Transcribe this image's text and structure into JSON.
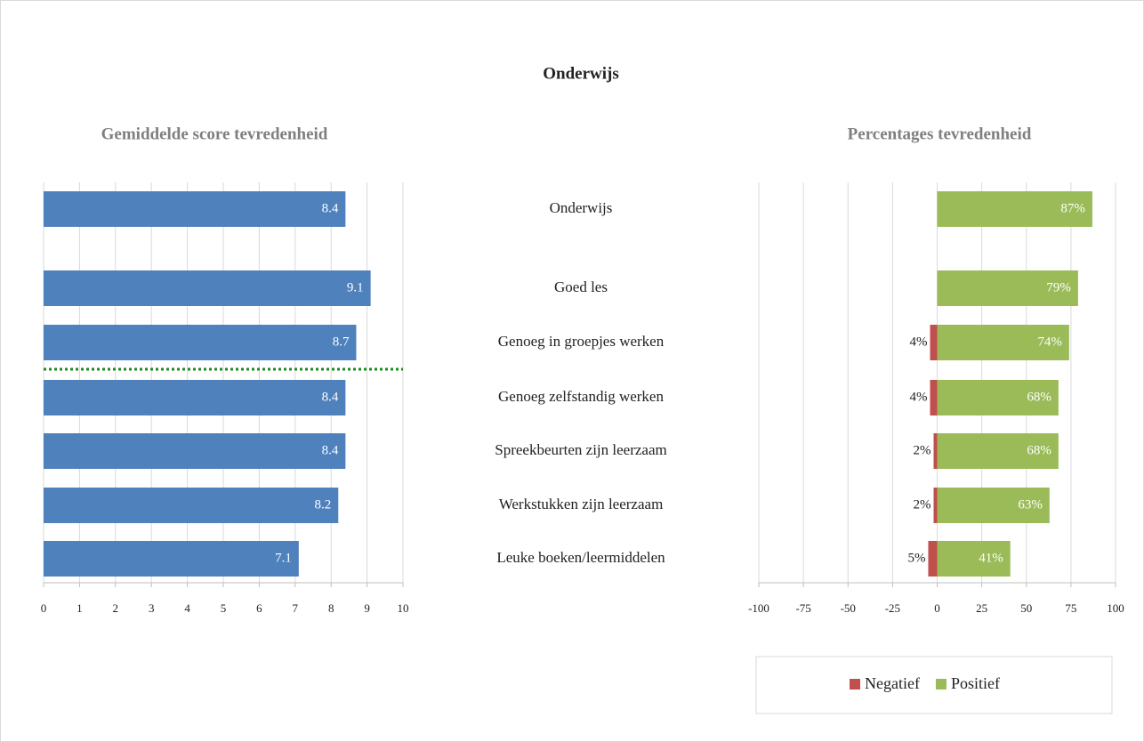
{
  "title": "Onderwijs",
  "chart_data": [
    {
      "type": "bar",
      "orientation": "horizontal",
      "title": "Gemiddelde score tevredenheid",
      "categories": [
        "Onderwijs",
        "Goed les",
        "Genoeg in groepjes werken",
        "Genoeg zelfstandig werken",
        "Spreekbeurten zijn leerzaam",
        "Werkstukken zijn leerzaam",
        "Leuke boeken/leermiddelen"
      ],
      "values": [
        8.4,
        9.1,
        8.7,
        8.4,
        8.4,
        8.2,
        7.1
      ],
      "color": "#4f81bd",
      "xlim": [
        0,
        10
      ],
      "xticks": [
        0,
        1,
        2,
        3,
        4,
        5,
        6,
        7,
        8,
        9,
        10
      ],
      "grid": true
    },
    {
      "type": "bar",
      "orientation": "horizontal",
      "stacked": true,
      "title": "Percentages tevredenheid",
      "series": [
        {
          "name": "Negatief",
          "color": "#c0504d",
          "values": [
            null,
            null,
            -4,
            -4,
            -2,
            -2,
            -5
          ],
          "value_labels": [
            null,
            null,
            "4%",
            "4%",
            "2%",
            "2%",
            "5%"
          ]
        },
        {
          "name": "Positief",
          "color": "#9bbb59",
          "values": [
            87,
            79,
            74,
            68,
            68,
            63,
            41
          ],
          "value_labels": [
            "87%",
            "79%",
            "74%",
            "68%",
            "68%",
            "63%",
            "41%"
          ]
        }
      ],
      "xlim": [
        -100,
        100
      ],
      "xticks": [
        -100,
        -75,
        -50,
        -25,
        0,
        25,
        50,
        75,
        100
      ],
      "grid": true,
      "legend": "bottom"
    }
  ]
}
